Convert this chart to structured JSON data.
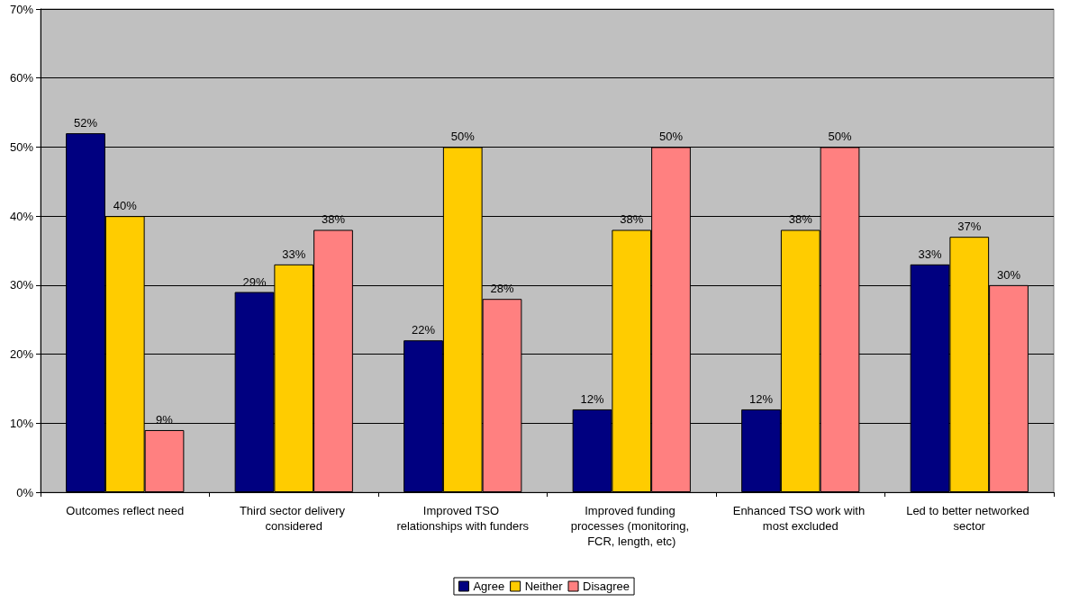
{
  "chart_data": {
    "type": "bar",
    "categories": [
      "Outcomes reflect need",
      "Third sector delivery considered",
      "Improved TSO relationships with funders",
      "Improved funding processes (monitoring, FCR, length, etc)",
      "Enhanced TSO work with most excluded",
      "Led to better networked sector"
    ],
    "series": [
      {
        "name": "Agree",
        "color": "#000080",
        "values": [
          52,
          29,
          22,
          12,
          12,
          33
        ],
        "value_labels": [
          "52%",
          "29%",
          "22%",
          "12%",
          "12%",
          "33%"
        ]
      },
      {
        "name": "Neither",
        "color": "#ffcc00",
        "values": [
          40,
          33,
          50,
          38,
          38,
          37
        ],
        "value_labels": [
          "40%",
          "33%",
          "50%",
          "38%",
          "38%",
          "37%"
        ]
      },
      {
        "name": "Disagree",
        "color": "#ff8080",
        "values": [
          9,
          38,
          28,
          50,
          50,
          30
        ],
        "value_labels": [
          "9%",
          "38%",
          "28%",
          "50%",
          "50%",
          "30%"
        ]
      }
    ],
    "ylim": [
      0,
      70
    ],
    "yticks": [
      {
        "value": 0,
        "label": "0%"
      },
      {
        "value": 10,
        "label": "10%"
      },
      {
        "value": 20,
        "label": "20%"
      },
      {
        "value": 30,
        "label": "30%"
      },
      {
        "value": 40,
        "label": "40%"
      },
      {
        "value": 50,
        "label": "50%"
      },
      {
        "value": 60,
        "label": "60%"
      },
      {
        "value": 70,
        "label": "70%"
      }
    ],
    "grid": "y",
    "legend": "bottom"
  }
}
